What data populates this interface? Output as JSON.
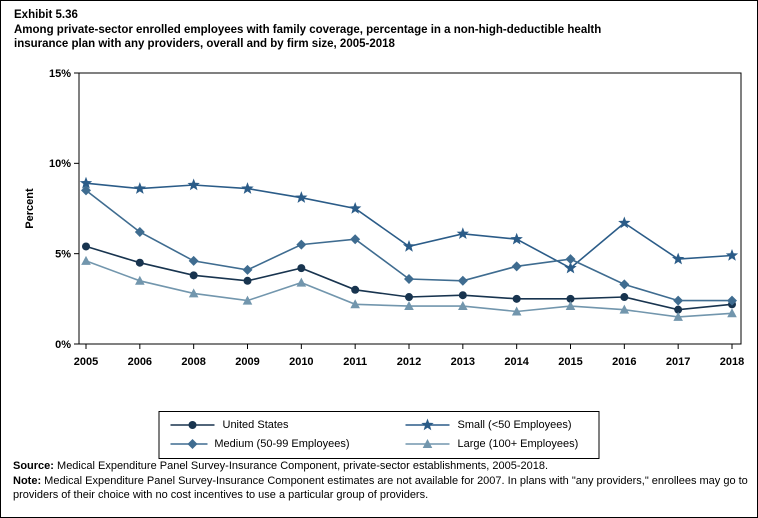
{
  "exhibit": {
    "number": "Exhibit 5.36",
    "title_line1": "Among private-sector enrolled employees with family coverage, percentage in a non-high-deductible health",
    "title_line2": "insurance plan with any providers, overall and by firm size, 2005-2018"
  },
  "chart_data": {
    "type": "line",
    "x": [
      2005,
      2006,
      2008,
      2009,
      2010,
      2011,
      2012,
      2013,
      2014,
      2015,
      2016,
      2017,
      2018
    ],
    "series": [
      {
        "name": "United States",
        "marker": "circle",
        "color": "#18344F",
        "values": [
          5.4,
          4.5,
          3.8,
          3.5,
          4.2,
          3.0,
          2.6,
          2.7,
          2.5,
          2.5,
          2.6,
          1.9,
          2.2
        ]
      },
      {
        "name": "Small (<50 Employees)",
        "marker": "star",
        "color": "#2B5C88",
        "values": [
          8.9,
          8.6,
          8.8,
          8.6,
          8.1,
          7.5,
          5.4,
          6.1,
          5.8,
          4.2,
          6.7,
          4.7,
          4.9
        ]
      },
      {
        "name": "Medium (50-99 Employees)",
        "marker": "diamond",
        "color": "#3F6C90",
        "values": [
          8.5,
          6.2,
          4.6,
          4.1,
          5.5,
          5.8,
          3.6,
          3.5,
          4.3,
          4.7,
          3.3,
          2.4,
          2.4
        ]
      },
      {
        "name": "Large (100+ Employees)",
        "marker": "triangle",
        "color": "#7296AD",
        "values": [
          4.6,
          3.5,
          2.8,
          2.4,
          3.4,
          2.2,
          2.1,
          2.1,
          1.8,
          2.1,
          1.9,
          1.5,
          1.7
        ]
      }
    ],
    "title": "Among private-sector enrolled employees with family coverage, percentage in a non-high-deductible health insurance plan with any providers, overall and by firm size, 2005-2018",
    "xlabel": "",
    "ylabel": "Percent",
    "ylim": [
      0,
      15
    ],
    "yticks": [
      0,
      5,
      10,
      15
    ],
    "ytick_labels": [
      "0%",
      "5%",
      "10%",
      "15%"
    ],
    "grid": false,
    "legend_position": "bottom"
  },
  "footer": {
    "source_label": "Source:",
    "source_text": " Medical Expenditure Panel Survey-Insurance Component, private-sector establishments, 2005-2018.",
    "note_label": "Note:",
    "note_text": " Medical Expenditure Panel Survey-Insurance Component estimates are not available for 2007. In plans with \"any providers,\" enrollees may go to providers of their choice with no cost incentives to use a particular group of providers."
  }
}
